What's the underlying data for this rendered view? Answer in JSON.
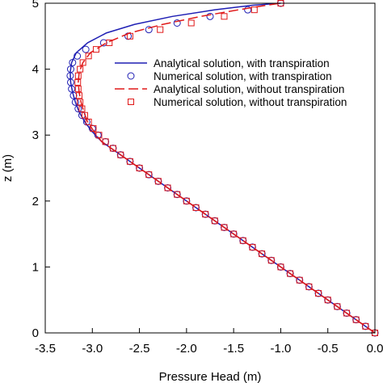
{
  "chart_data": {
    "type": "line",
    "xlabel": "Pressure Head (m)",
    "ylabel": "z (m)",
    "xlim": [
      -3.5,
      0.0
    ],
    "ylim": [
      0,
      5
    ],
    "x_ticks": [
      "-3.5",
      "-3.0",
      "-2.5",
      "-2.0",
      "-1.5",
      "-1.0",
      "-0.5",
      "0.0"
    ],
    "y_ticks": [
      "0",
      "1",
      "2",
      "3",
      "4",
      "5"
    ],
    "legend_position": "upper-right",
    "grid": false,
    "series": [
      {
        "name": "Analytical solution, with transpiration",
        "style": "solid-line",
        "color": "#1f1fb4",
        "points": [
          [
            0.0,
            0.0
          ],
          [
            -0.25,
            0.25
          ],
          [
            -0.5,
            0.5
          ],
          [
            -0.75,
            0.75
          ],
          [
            -1.0,
            1.0
          ],
          [
            -1.25,
            1.25
          ],
          [
            -1.5,
            1.5
          ],
          [
            -1.75,
            1.75
          ],
          [
            -2.0,
            2.0
          ],
          [
            -2.25,
            2.25
          ],
          [
            -2.5,
            2.5
          ],
          [
            -2.75,
            2.75
          ],
          [
            -2.9,
            2.9
          ],
          [
            -3.0,
            3.05
          ],
          [
            -3.08,
            3.2
          ],
          [
            -3.14,
            3.35
          ],
          [
            -3.18,
            3.5
          ],
          [
            -3.21,
            3.65
          ],
          [
            -3.23,
            3.8
          ],
          [
            -3.235,
            3.95
          ],
          [
            -3.22,
            4.1
          ],
          [
            -3.17,
            4.25
          ],
          [
            -3.05,
            4.4
          ],
          [
            -2.85,
            4.55
          ],
          [
            -2.55,
            4.68
          ],
          [
            -2.15,
            4.8
          ],
          [
            -1.7,
            4.9
          ],
          [
            -1.3,
            4.97
          ],
          [
            -1.0,
            5.0
          ]
        ]
      },
      {
        "name": "Numerical solution, with transpiration",
        "style": "circle",
        "color": "#1f1fb4",
        "points": [
          [
            0.0,
            0.0
          ],
          [
            -0.1,
            0.1
          ],
          [
            -0.2,
            0.2
          ],
          [
            -0.3,
            0.3
          ],
          [
            -0.4,
            0.4
          ],
          [
            -0.5,
            0.5
          ],
          [
            -0.6,
            0.6
          ],
          [
            -0.7,
            0.7
          ],
          [
            -0.8,
            0.8
          ],
          [
            -0.9,
            0.9
          ],
          [
            -1.0,
            1.0
          ],
          [
            -1.1,
            1.1
          ],
          [
            -1.2,
            1.2
          ],
          [
            -1.3,
            1.3
          ],
          [
            -1.4,
            1.4
          ],
          [
            -1.5,
            1.5
          ],
          [
            -1.6,
            1.6
          ],
          [
            -1.7,
            1.7
          ],
          [
            -1.8,
            1.8
          ],
          [
            -1.9,
            1.9
          ],
          [
            -2.0,
            2.0
          ],
          [
            -2.1,
            2.1
          ],
          [
            -2.2,
            2.2
          ],
          [
            -2.3,
            2.3
          ],
          [
            -2.4,
            2.4
          ],
          [
            -2.5,
            2.5
          ],
          [
            -2.6,
            2.6
          ],
          [
            -2.7,
            2.7
          ],
          [
            -2.78,
            2.8
          ],
          [
            -2.86,
            2.9
          ],
          [
            -2.94,
            3.0
          ],
          [
            -3.0,
            3.1
          ],
          [
            -3.06,
            3.2
          ],
          [
            -3.11,
            3.3
          ],
          [
            -3.15,
            3.4
          ],
          [
            -3.18,
            3.5
          ],
          [
            -3.2,
            3.6
          ],
          [
            -3.22,
            3.7
          ],
          [
            -3.23,
            3.8
          ],
          [
            -3.235,
            3.9
          ],
          [
            -3.23,
            4.0
          ],
          [
            -3.21,
            4.1
          ],
          [
            -3.16,
            4.2
          ],
          [
            -3.07,
            4.3
          ],
          [
            -2.88,
            4.4
          ],
          [
            -2.62,
            4.5
          ],
          [
            -2.4,
            4.6
          ],
          [
            -2.1,
            4.7
          ],
          [
            -1.75,
            4.8
          ],
          [
            -1.35,
            4.9
          ],
          [
            -1.0,
            5.0
          ]
        ]
      },
      {
        "name": "Analytical solution, without transpiration",
        "style": "dashed-line",
        "color": "#e01818",
        "points": [
          [
            0.0,
            0.0
          ],
          [
            -0.25,
            0.25
          ],
          [
            -0.5,
            0.5
          ],
          [
            -0.75,
            0.75
          ],
          [
            -1.0,
            1.0
          ],
          [
            -1.25,
            1.25
          ],
          [
            -1.5,
            1.5
          ],
          [
            -1.75,
            1.75
          ],
          [
            -2.0,
            2.0
          ],
          [
            -2.25,
            2.25
          ],
          [
            -2.5,
            2.5
          ],
          [
            -2.75,
            2.75
          ],
          [
            -2.9,
            2.9
          ],
          [
            -2.98,
            3.05
          ],
          [
            -3.05,
            3.2
          ],
          [
            -3.09,
            3.35
          ],
          [
            -3.12,
            3.5
          ],
          [
            -3.14,
            3.65
          ],
          [
            -3.15,
            3.8
          ],
          [
            -3.14,
            3.95
          ],
          [
            -3.1,
            4.1
          ],
          [
            -3.02,
            4.25
          ],
          [
            -2.85,
            4.4
          ],
          [
            -2.6,
            4.55
          ],
          [
            -2.25,
            4.68
          ],
          [
            -1.85,
            4.8
          ],
          [
            -1.45,
            4.9
          ],
          [
            -1.15,
            4.97
          ],
          [
            -1.0,
            5.0
          ]
        ]
      },
      {
        "name": "Numerical solution, without transpiration",
        "style": "square",
        "color": "#e01818",
        "points": [
          [
            0.0,
            0.0
          ],
          [
            -0.1,
            0.1
          ],
          [
            -0.2,
            0.2
          ],
          [
            -0.3,
            0.3
          ],
          [
            -0.4,
            0.4
          ],
          [
            -0.5,
            0.5
          ],
          [
            -0.6,
            0.6
          ],
          [
            -0.7,
            0.7
          ],
          [
            -0.8,
            0.8
          ],
          [
            -0.9,
            0.9
          ],
          [
            -1.0,
            1.0
          ],
          [
            -1.1,
            1.1
          ],
          [
            -1.2,
            1.2
          ],
          [
            -1.3,
            1.3
          ],
          [
            -1.4,
            1.4
          ],
          [
            -1.5,
            1.5
          ],
          [
            -1.6,
            1.6
          ],
          [
            -1.7,
            1.7
          ],
          [
            -1.8,
            1.8
          ],
          [
            -1.9,
            1.9
          ],
          [
            -2.0,
            2.0
          ],
          [
            -2.1,
            2.1
          ],
          [
            -2.2,
            2.2
          ],
          [
            -2.3,
            2.3
          ],
          [
            -2.4,
            2.4
          ],
          [
            -2.5,
            2.5
          ],
          [
            -2.6,
            2.6
          ],
          [
            -2.7,
            2.7
          ],
          [
            -2.78,
            2.8
          ],
          [
            -2.86,
            2.9
          ],
          [
            -2.93,
            3.0
          ],
          [
            -2.99,
            3.1
          ],
          [
            -3.04,
            3.2
          ],
          [
            -3.08,
            3.3
          ],
          [
            -3.11,
            3.4
          ],
          [
            -3.13,
            3.5
          ],
          [
            -3.14,
            3.6
          ],
          [
            -3.15,
            3.7
          ],
          [
            -3.155,
            3.8
          ],
          [
            -3.15,
            3.9
          ],
          [
            -3.13,
            4.0
          ],
          [
            -3.1,
            4.1
          ],
          [
            -3.04,
            4.2
          ],
          [
            -2.96,
            4.3
          ],
          [
            -2.82,
            4.4
          ],
          [
            -2.6,
            4.5
          ],
          [
            -2.28,
            4.6
          ],
          [
            -1.95,
            4.7
          ],
          [
            -1.6,
            4.8
          ],
          [
            -1.28,
            4.9
          ],
          [
            -1.0,
            5.0
          ]
        ]
      }
    ]
  }
}
